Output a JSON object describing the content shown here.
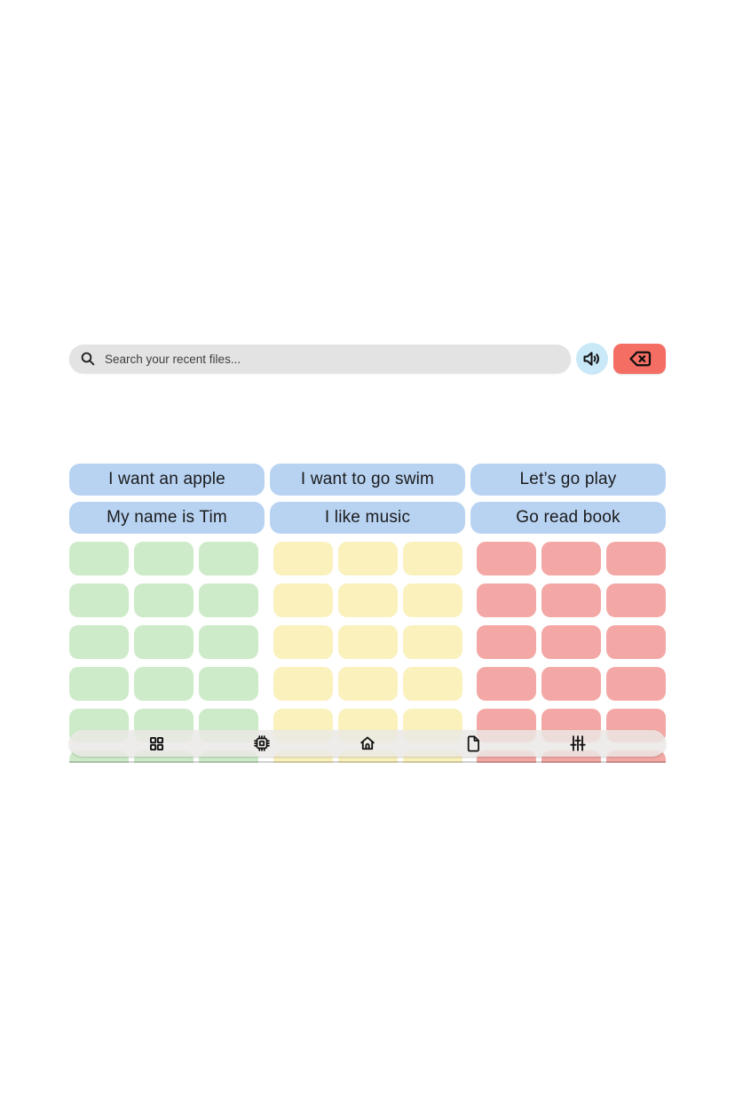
{
  "search": {
    "placeholder": "Search your recent files..."
  },
  "actions": {
    "speak_tooltip": "speak",
    "backspace_tooltip": "backspace"
  },
  "phrases": [
    {
      "label": "I want an apple"
    },
    {
      "label": "I want to go swim"
    },
    {
      "label": "Let’s go play"
    },
    {
      "label": "My name is Tim"
    },
    {
      "label": "I like music"
    },
    {
      "label": "Go read book"
    }
  ],
  "tile_grid": {
    "rows": 6,
    "groups": [
      {
        "name": "tile-group-green",
        "color": "#cdebc8",
        "columns": 3
      },
      {
        "name": "tile-group-yellow",
        "color": "#faf1bd",
        "columns": 3
      },
      {
        "name": "tile-group-red",
        "color": "#f3a8a5",
        "columns": 3
      }
    ]
  },
  "navbar": {
    "items": [
      {
        "name": "nav-apps",
        "icon": "grid-icon"
      },
      {
        "name": "nav-chip",
        "icon": "chip-icon"
      },
      {
        "name": "nav-home",
        "icon": "home-icon"
      },
      {
        "name": "nav-files",
        "icon": "file-icon"
      },
      {
        "name": "nav-settings",
        "icon": "sliders-icon"
      }
    ]
  },
  "colors": {
    "phrase_button": "#b8d3f2",
    "search_bar": "#e3e3e3",
    "speak_button_bg": "#c9e9f8",
    "backspace_button_bg": "#f56e64",
    "navbar_bg": "rgba(234,232,229,0.82)",
    "tile_green": "#cdebc8",
    "tile_yellow": "#faf1bd",
    "tile_red": "#f3a8a5",
    "icon_stroke": "#121212"
  }
}
